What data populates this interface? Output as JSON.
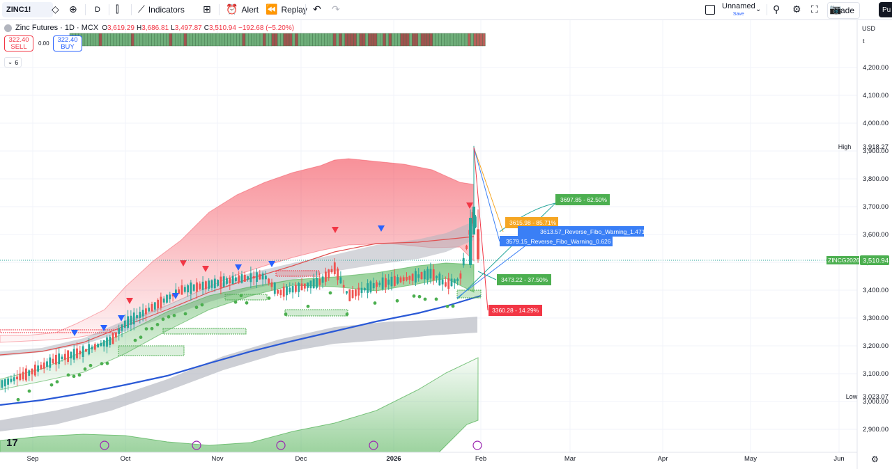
{
  "toolbar": {
    "symbol": "ZINC1!",
    "interval": "D",
    "indicators_label": "Indicators",
    "alert_label": "Alert",
    "replay_label": "Replay",
    "layout_name": "Unnamed",
    "layout_save": "Save",
    "trade_label": "Trade",
    "publish_label": "Pu"
  },
  "legend": {
    "title": "Zinc Futures · 1D · MCX",
    "open_label": "O",
    "open": "3,619.29",
    "high_label": "H",
    "high": "3,686.81",
    "low_label": "L",
    "low": "3,497.87",
    "close_label": "C",
    "close": "3,510.94",
    "change": "−192.68 (−5.20%)",
    "sell_price": "322.40",
    "sell_label": "SELL",
    "spread": "0.00",
    "buy_price": "322.40",
    "buy_label": "BUY",
    "indicators_count": "6"
  },
  "price_axis": {
    "currency": "USD",
    "unit": "t",
    "ticks": [
      "4,200.00",
      "4,100.00",
      "4,000.00",
      "3,900.00",
      "3,800.00",
      "3,700.00",
      "3,600.00",
      "3,500.00",
      "3,400.00",
      "3,300.00",
      "3,200.00",
      "3,100.00",
      "3,000.00",
      "2,900.00"
    ],
    "tick_values": [
      4200,
      4100,
      4000,
      3900,
      3800,
      3700,
      3600,
      3500,
      3400,
      3300,
      3200,
      3100,
      3000,
      2900
    ],
    "high_label": "High",
    "high_value": "3,918.27",
    "low_label": "Low",
    "low_value": "3,023.07",
    "last_tag": "ZINCG2026",
    "last_value": "3,510.94"
  },
  "time_axis": {
    "labels": [
      "Sep",
      "Oct",
      "Nov",
      "Dec",
      "2026",
      "Feb",
      "Mar",
      "Apr",
      "May",
      "Jun"
    ]
  },
  "annotations": {
    "fib_62": "3697.85 - 62.50%",
    "fib_85": "3615.98 - 85.71%",
    "rev_1471": "3613.57_Reverse_Fibo_Warning_1.471",
    "rev_0626": "3579.15_Reverse_Fibo_Warning_0.626",
    "fib_37": "3473.22 - 37.50%",
    "fib_14": "3360.28 - 14.29%"
  },
  "colors": {
    "up": "#26a69a",
    "down": "#ef5350",
    "ma_blue": "#2a59d6",
    "band_green": "#4caf50",
    "band_red": "#f23645",
    "label_orange": "#f5a623",
    "label_blue": "#3a7ff6"
  }
}
